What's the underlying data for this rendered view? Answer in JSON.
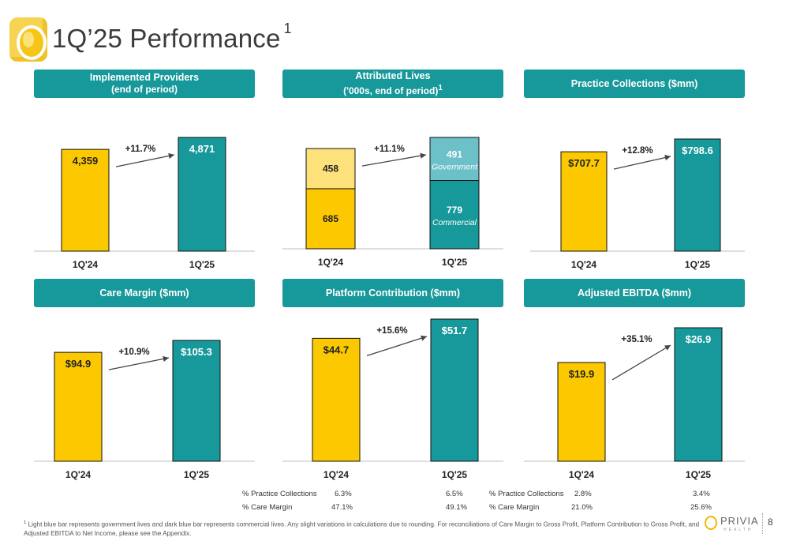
{
  "slide": {
    "title": "1Q’25 Performance",
    "title_footnote_mark": "1",
    "footnote_mark": "1",
    "footnote": "Light blue bar represents government lives and dark blue bar represents commercial lives. Any slight variations in calculations due to rounding.  For reconciliations of Care Margin to Gross Profit, Platform Contribution to Gross Profit, and Adjusted EBITDA to Net Income, please see the Appendix.",
    "page_number": "8",
    "brand_name": "PRIVIA",
    "brand_tagline": "HEALTH"
  },
  "colors": {
    "header_teal": "#17989a",
    "bar_gold": "#fcc900",
    "bar_teal": "#17989a",
    "bar_light_gold": "#fde17a",
    "bar_light_teal": "#6cc0c8"
  },
  "ratios": {
    "platform": {
      "rows": [
        {
          "label": "% Practice Collections",
          "q1_24": "6.3%",
          "q1_25": "6.5%"
        },
        {
          "label": "% Care Margin",
          "q1_24": "47.1%",
          "q1_25": "49.1%"
        }
      ]
    },
    "ebitda": {
      "rows": [
        {
          "label": "% Practice Collections",
          "q1_24": "2.8%",
          "q1_25": "3.4%"
        },
        {
          "label": "% Care Margin",
          "q1_24": "21.0%",
          "q1_25": "25.6%"
        }
      ]
    }
  },
  "chart_data": [
    {
      "type": "bar",
      "header": "Implemented Providers",
      "header_sub": "(end of period)",
      "categories": [
        "1Q'24",
        "1Q'25"
      ],
      "values": [
        4359,
        4871
      ],
      "labels": [
        "4,359",
        "4,871"
      ],
      "growth": "+11.7%"
    },
    {
      "type": "bar",
      "stacked": true,
      "header": "Attributed Lives",
      "header_sub": "('000s, end of period)",
      "header_sub_mark": "1",
      "categories": [
        "1Q'24",
        "1Q'25"
      ],
      "series": [
        {
          "name": "Commercial",
          "values": [
            685,
            779
          ],
          "labels": [
            "685",
            "779"
          ]
        },
        {
          "name": "Government",
          "values": [
            458,
            491
          ],
          "labels": [
            "458",
            "491"
          ]
        }
      ],
      "totals": [
        1143,
        1270
      ],
      "growth": "+11.1%"
    },
    {
      "type": "bar",
      "header": "Practice Collections ($mm)",
      "categories": [
        "1Q'24",
        "1Q'25"
      ],
      "values": [
        707.7,
        798.6
      ],
      "labels": [
        "$707.7",
        "$798.6"
      ],
      "growth": "+12.8%"
    },
    {
      "type": "bar",
      "header": "Care Margin ($mm)",
      "categories": [
        "1Q'24",
        "1Q'25"
      ],
      "values": [
        94.9,
        105.3
      ],
      "labels": [
        "$94.9",
        "$105.3"
      ],
      "growth": "+10.9%"
    },
    {
      "type": "bar",
      "header": "Platform Contribution ($mm)",
      "categories": [
        "1Q'24",
        "1Q'25"
      ],
      "values": [
        44.7,
        51.7
      ],
      "labels": [
        "$44.7",
        "$51.7"
      ],
      "growth": "+15.6%"
    },
    {
      "type": "bar",
      "header": "Adjusted EBITDA ($mm)",
      "categories": [
        "1Q'24",
        "1Q'25"
      ],
      "values": [
        19.9,
        26.9
      ],
      "labels": [
        "$19.9",
        "$26.9"
      ],
      "growth": "+35.1%"
    }
  ]
}
